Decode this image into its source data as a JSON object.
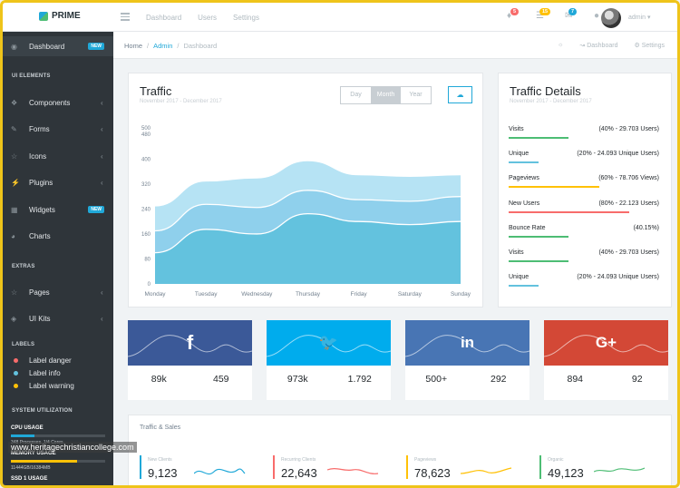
{
  "brand": {
    "name": "PRIME"
  },
  "topnav": {
    "items": [
      "Dashboard",
      "Users",
      "Settings"
    ]
  },
  "header": {
    "badges": [
      {
        "icon": "bell-icon",
        "count": "5",
        "color": "#f86c6b"
      },
      {
        "icon": "list-icon",
        "count": "15",
        "color": "#ffc107"
      },
      {
        "icon": "mail-icon",
        "count": "7",
        "color": "#20a8d8"
      }
    ],
    "user": "admin"
  },
  "sidebar": {
    "dashboard": {
      "label": "Dashboard",
      "badge": "NEW"
    },
    "ui_title": "UI ELEMENTS",
    "components": "Components",
    "forms": "Forms",
    "icons": "Icons",
    "plugins": "Plugins",
    "widgets": {
      "label": "Widgets",
      "badge": "NEW"
    },
    "charts": "Charts",
    "extras_title": "EXTRAS",
    "pages": "Pages",
    "uikits": "UI Kits",
    "labels_title": "LABELS",
    "labels": [
      {
        "label": "Label danger",
        "color": "#f86c6b"
      },
      {
        "label": "Label info",
        "color": "#63c2de"
      },
      {
        "label": "Label warning",
        "color": "#ffc107"
      }
    ],
    "system_title": "SYSTEM UTILIZATION",
    "cpu": {
      "label": "CPU USAGE",
      "detail": "348 Processes. 1/4 Cores.",
      "fraction": 0.25,
      "color": "#20a8d8"
    },
    "memory": {
      "label": "MEMORY USAGE",
      "detail": "11444GB/16384MB",
      "fraction": 0.7,
      "color": "#ffc107"
    },
    "ssd": {
      "label": "SSD 1 USAGE"
    }
  },
  "breadcrumb": {
    "home": "Home",
    "admin": "Admin",
    "current": "Dashboard"
  },
  "breadcrumb_right": {
    "dashboard": "Dashboard",
    "settings": "Settings"
  },
  "traffic": {
    "title": "Traffic",
    "subtitle": "November 2017 - December 2017",
    "tabs": [
      "Day",
      "Month",
      "Year"
    ],
    "selected_tab": "Month"
  },
  "chart_data": {
    "type": "area",
    "title": "Traffic",
    "categories": [
      "Monday",
      "Tuesday",
      "Wednesday",
      "Thursday",
      "Friday",
      "Saturday",
      "Sunday"
    ],
    "y_ticks": [
      "500",
      "480",
      "400",
      "320",
      "240",
      "160",
      "80",
      "0"
    ],
    "ylim": [
      0,
      500
    ],
    "series": [
      {
        "values": [
          250,
          330,
          340,
          395,
          350,
          345,
          350
        ],
        "color": "#b6e3f4"
      },
      {
        "values": [
          170,
          255,
          245,
          300,
          270,
          265,
          280
        ],
        "color": "#8fd0ec"
      },
      {
        "values": [
          100,
          175,
          160,
          225,
          200,
          190,
          200
        ],
        "color": "#63c2de"
      }
    ],
    "grid": true
  },
  "traffic_details": {
    "title": "Traffic Details",
    "subtitle": "November 2017 - December 2017",
    "rows": [
      {
        "label": "Visits",
        "value": "(40% - 29.703 Users)",
        "color": "#4dbd74",
        "fraction": 0.4
      },
      {
        "label": "Unique",
        "value": "(20% - 24.093 Unique Users)",
        "color": "#63c2de",
        "fraction": 0.2
      },
      {
        "label": "Pageviews",
        "value": "(60% - 78.706 Views)",
        "color": "#ffc107",
        "fraction": 0.6
      },
      {
        "label": "New Users",
        "value": "(80% - 22.123 Users)",
        "color": "#f86c6b",
        "fraction": 0.8
      },
      {
        "label": "Bounce Rate",
        "value": "(40.15%)",
        "color": "#4dbd74",
        "fraction": 0.4
      },
      {
        "label": "Visits",
        "value": "(40% - 29.703 Users)",
        "color": "#4dbd74",
        "fraction": 0.4
      },
      {
        "label": "Unique",
        "value": "(20% - 24.093 Unique Users)",
        "color": "#63c2de",
        "fraction": 0.2
      }
    ]
  },
  "social": [
    {
      "network": "facebook",
      "glyph": "f",
      "bg": "#3b5998",
      "left": "89k",
      "right": "459"
    },
    {
      "network": "twitter",
      "glyph": "🐦",
      "bg": "#00aced",
      "left": "973k",
      "right": "1.792"
    },
    {
      "network": "linkedin",
      "glyph": "in",
      "bg": "#4875b4",
      "left": "500+",
      "right": "292"
    },
    {
      "network": "google-plus",
      "glyph": "G+",
      "bg": "#d34836",
      "left": "894",
      "right": "92"
    }
  ],
  "traffic_sales": {
    "title": "Traffic & Sales",
    "kpis": [
      {
        "label": "New Clients",
        "value": "9,123",
        "color": "#20a8d8"
      },
      {
        "label": "Recurring Clients",
        "value": "22,643",
        "color": "#f86c6b"
      },
      {
        "label": "Pageviews",
        "value": "78,623",
        "color": "#ffc107"
      },
      {
        "label": "Organic",
        "value": "49,123",
        "color": "#4dbd74"
      }
    ]
  },
  "watermark": "www.heritagechristiancollege.com"
}
